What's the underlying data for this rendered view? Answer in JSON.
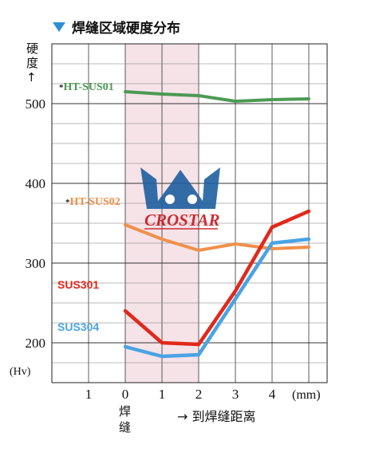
{
  "header": {
    "title": "焊缝区域硬度分布",
    "marker_color": "#2e8fd6"
  },
  "logo": {
    "text": "CROSTAR",
    "crown_color": "#1f5fa0",
    "text_color": "#c8191e"
  },
  "chart_data": {
    "type": "line",
    "title": "焊缝区域硬度分布",
    "ylabel": "硬度↑",
    "yunit": "(Hv)",
    "xunit": "(mm)",
    "xlabel": "焊缝",
    "xlabel_arrow": "→ 到焊缝距离",
    "x_ticks": [
      "1",
      "0",
      "1",
      "2",
      "3",
      "4"
    ],
    "y_ticks": [
      "500",
      "400",
      "300",
      "200"
    ],
    "ylim": [
      150,
      575
    ],
    "xlim": [
      -2,
      5.5
    ],
    "grid": true,
    "weld_zone": [
      0,
      2
    ],
    "series": [
      {
        "name": "HT-SUS01",
        "marker": "*",
        "color": "#4c9a53",
        "x": [
          0,
          1,
          2,
          3,
          4,
          5
        ],
        "y": [
          515,
          512,
          510,
          503,
          505,
          506
        ]
      },
      {
        "name": "HT-SUS02",
        "marker": "*",
        "color": "#f0904a",
        "x": [
          0,
          1,
          2,
          3,
          4,
          5
        ],
        "y": [
          348,
          330,
          316,
          324,
          318,
          320
        ]
      },
      {
        "name": "SUS301",
        "color": "#e0291b",
        "x": [
          0,
          1,
          2,
          3,
          4,
          5
        ],
        "y": [
          240,
          200,
          198,
          265,
          345,
          365
        ]
      },
      {
        "name": "SUS304",
        "color": "#4aa3e4",
        "x": [
          0,
          1,
          2,
          3,
          4,
          5
        ],
        "y": [
          195,
          183,
          185,
          255,
          325,
          330
        ]
      }
    ]
  }
}
